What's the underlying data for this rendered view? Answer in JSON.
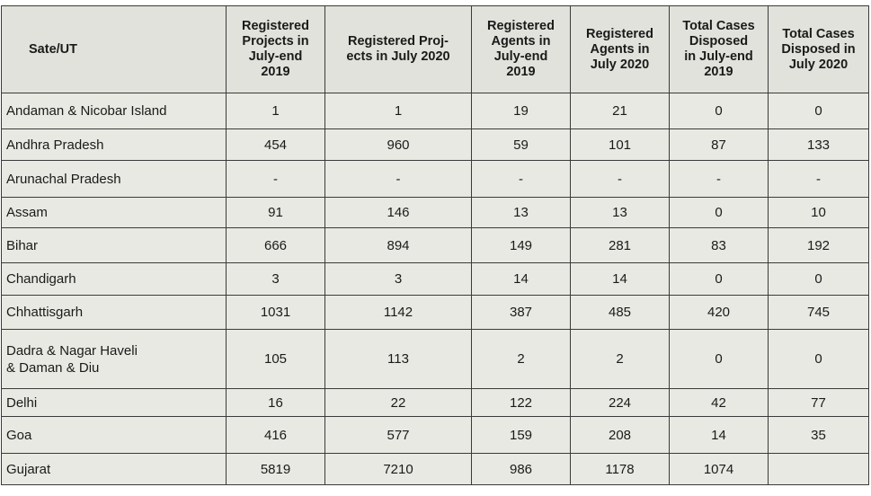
{
  "table": {
    "headers": [
      "Sate/UT",
      "Registered Projects in July-end 2019",
      "Registered Proj-ects in July 2020",
      "Registered Agents in July-end 2019",
      "Registered Agents in July 2020",
      "Total Cases Disposed in July-end 2019",
      "Total Cases Disposed in July 2020"
    ],
    "header_lines": [
      [
        "Sate/UT"
      ],
      [
        "Registered",
        "Projects in",
        "July-end",
        "2019"
      ],
      [
        "Registered Proj-",
        "ects in July 2020"
      ],
      [
        "Registered",
        "Agents in",
        "July-end",
        "2019"
      ],
      [
        "Registered",
        "Agents in",
        "July 2020"
      ],
      [
        "Total Cases",
        "Disposed",
        "in July-end",
        "2019"
      ],
      [
        "Total Cases",
        "Disposed in",
        "July 2020"
      ]
    ],
    "rows": [
      {
        "state": "Andaman & Nicobar Island",
        "values": [
          "1",
          "1",
          "19",
          "21",
          "0",
          "0"
        ]
      },
      {
        "state": "Andhra Pradesh",
        "values": [
          "454",
          "960",
          "59",
          "101",
          "87",
          "133"
        ]
      },
      {
        "state": "Arunachal Pradesh",
        "values": [
          "-",
          "-",
          "-",
          "-",
          "-",
          "-"
        ]
      },
      {
        "state": "Assam",
        "values": [
          "91",
          "146",
          "13",
          "13",
          "0",
          "10"
        ]
      },
      {
        "state": "Bihar",
        "values": [
          "666",
          "894",
          "149",
          "281",
          "83",
          "192"
        ]
      },
      {
        "state": "Chandigarh",
        "values": [
          "3",
          "3",
          "14",
          "14",
          "0",
          "0"
        ]
      },
      {
        "state": "Chhattisgarh",
        "values": [
          "1031",
          "1142",
          "387",
          "485",
          "420",
          "745"
        ]
      },
      {
        "state": "Dadra & Nagar Haveli\n& Daman & Diu",
        "values": [
          "105",
          "113",
          "2",
          "2",
          "0",
          "0"
        ]
      },
      {
        "state": "Delhi",
        "values": [
          "16",
          "22",
          "122",
          "224",
          "42",
          "77"
        ]
      },
      {
        "state": "Goa",
        "values": [
          "416",
          "577",
          "159",
          "208",
          "14",
          "35"
        ]
      },
      {
        "state": "Gujarat",
        "values": [
          "5819",
          "7210",
          "986",
          "1178",
          "1074",
          ""
        ]
      }
    ]
  }
}
